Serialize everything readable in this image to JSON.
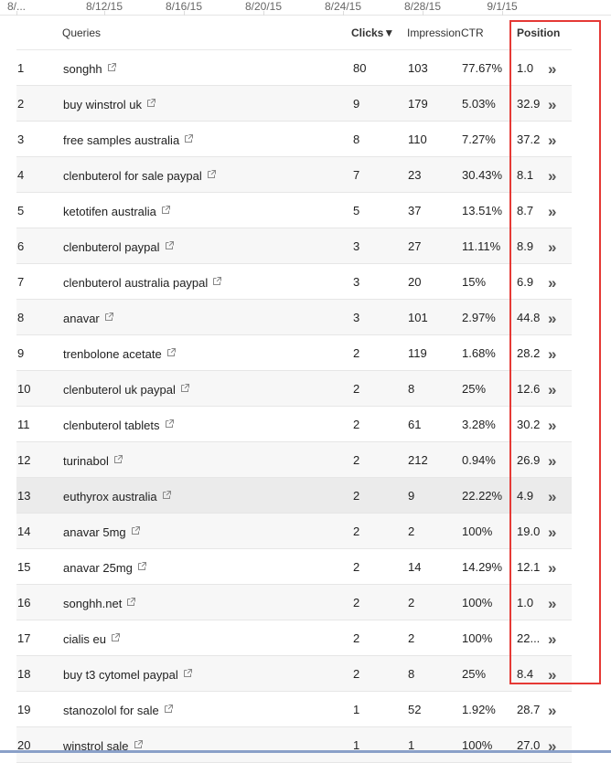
{
  "axis": {
    "labels": [
      "8/...",
      "8/12/15",
      "8/16/15",
      "8/20/15",
      "8/24/15",
      "8/28/15",
      "9/1/15"
    ]
  },
  "table": {
    "headers": {
      "queries": "Queries",
      "clicks": "Clicks▼",
      "impressions": "Impressions",
      "ctr": "CTR",
      "position": "Position"
    },
    "more_glyph": "»",
    "rows": [
      {
        "index": "1",
        "query": "songhh",
        "clicks": "80",
        "impressions": "103",
        "ctr": "77.67%",
        "position": "1.0"
      },
      {
        "index": "2",
        "query": "buy winstrol uk",
        "clicks": "9",
        "impressions": "179",
        "ctr": "5.03%",
        "position": "32.9"
      },
      {
        "index": "3",
        "query": "free samples australia",
        "clicks": "8",
        "impressions": "110",
        "ctr": "7.27%",
        "position": "37.2"
      },
      {
        "index": "4",
        "query": "clenbuterol for sale paypal",
        "clicks": "7",
        "impressions": "23",
        "ctr": "30.43%",
        "position": "8.1"
      },
      {
        "index": "5",
        "query": "ketotifen australia",
        "clicks": "5",
        "impressions": "37",
        "ctr": "13.51%",
        "position": "8.7"
      },
      {
        "index": "6",
        "query": "clenbuterol paypal",
        "clicks": "3",
        "impressions": "27",
        "ctr": "11.11%",
        "position": "8.9"
      },
      {
        "index": "7",
        "query": "clenbuterol australia paypal",
        "clicks": "3",
        "impressions": "20",
        "ctr": "15%",
        "position": "6.9"
      },
      {
        "index": "8",
        "query": "anavar",
        "clicks": "3",
        "impressions": "101",
        "ctr": "2.97%",
        "position": "44.8"
      },
      {
        "index": "9",
        "query": "trenbolone acetate",
        "clicks": "2",
        "impressions": "119",
        "ctr": "1.68%",
        "position": "28.2"
      },
      {
        "index": "10",
        "query": "clenbuterol uk paypal",
        "clicks": "2",
        "impressions": "8",
        "ctr": "25%",
        "position": "12.6"
      },
      {
        "index": "11",
        "query": "clenbuterol tablets",
        "clicks": "2",
        "impressions": "61",
        "ctr": "3.28%",
        "position": "30.2"
      },
      {
        "index": "12",
        "query": "turinabol",
        "clicks": "2",
        "impressions": "212",
        "ctr": "0.94%",
        "position": "26.9"
      },
      {
        "index": "13",
        "query": "euthyrox australia",
        "clicks": "2",
        "impressions": "9",
        "ctr": "22.22%",
        "position": "4.9"
      },
      {
        "index": "14",
        "query": "anavar 5mg",
        "clicks": "2",
        "impressions": "2",
        "ctr": "100%",
        "position": "19.0"
      },
      {
        "index": "15",
        "query": "anavar 25mg",
        "clicks": "2",
        "impressions": "14",
        "ctr": "14.29%",
        "position": "12.1"
      },
      {
        "index": "16",
        "query": "songhh.net",
        "clicks": "2",
        "impressions": "2",
        "ctr": "100%",
        "position": "1.0"
      },
      {
        "index": "17",
        "query": "cialis eu",
        "clicks": "2",
        "impressions": "2",
        "ctr": "100%",
        "position": "22..."
      },
      {
        "index": "18",
        "query": "buy t3 cytomel paypal",
        "clicks": "2",
        "impressions": "8",
        "ctr": "25%",
        "position": "8.4"
      },
      {
        "index": "19",
        "query": "stanozolol for sale",
        "clicks": "1",
        "impressions": "52",
        "ctr": "1.92%",
        "position": "28.7"
      },
      {
        "index": "20",
        "query": "winstrol sale",
        "clicks": "1",
        "impressions": "1",
        "ctr": "100%",
        "position": "27.0"
      }
    ]
  },
  "colors": {
    "highlight_box": "#e53935",
    "hovered_row": "#ebebeb",
    "alt_row": "#f7f7f7"
  }
}
